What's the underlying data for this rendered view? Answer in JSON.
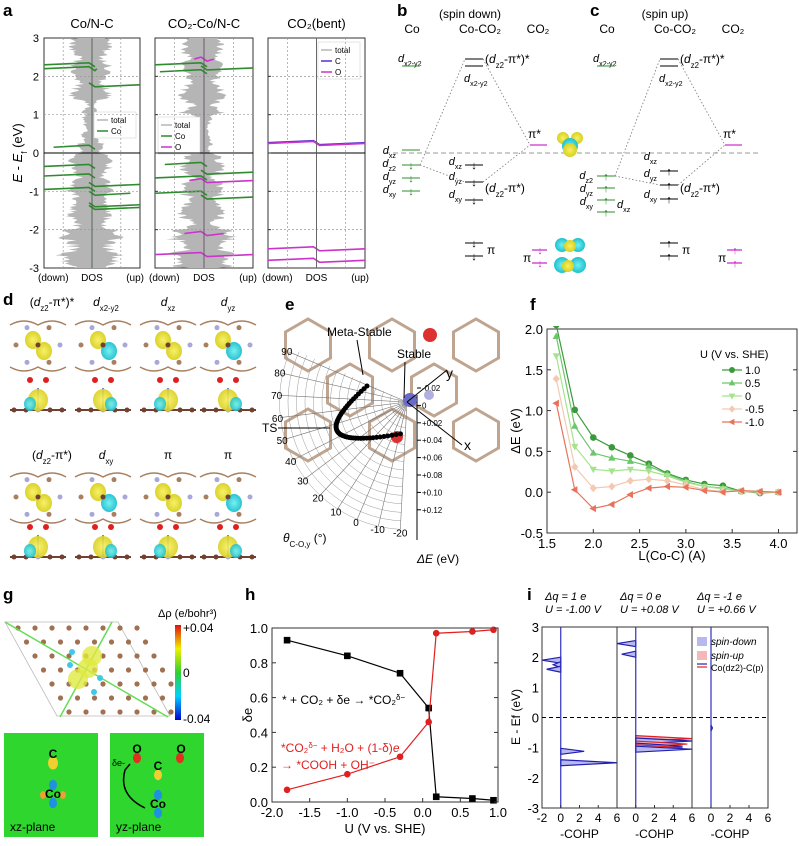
{
  "panel_labels": {
    "a": "a",
    "b": "b",
    "c": "c",
    "d": "d",
    "e": "e",
    "f": "f",
    "g": "g",
    "h": "h",
    "i": "i"
  },
  "a": {
    "ylabel_pre": "E",
    "ylabel_mid": " - ",
    "ylabel_E": "E",
    "ylabel_sub": "f",
    "ylabel_post": " (eV)"
  },
  "b": {
    "header": "(spin down)",
    "columns": [
      "Co",
      "Co-CO₂",
      "CO₂"
    ],
    "co": {
      "dx2y2": {
        "d": "d",
        "sub": "x2-y2"
      },
      "dxz": {
        "d": "d",
        "sub": "xz"
      },
      "dz2": {
        "d": "d",
        "sub": "z2"
      },
      "dyz": {
        "d": "d",
        "sub": "yz"
      },
      "dxy": {
        "d": "d",
        "sub": "xy"
      }
    },
    "complex": {
      "anti": {
        "pre": "(",
        "d": "d",
        "sub": "z2",
        "post": "-π*)*"
      },
      "dx2y2": {
        "d": "d",
        "sub": "x2-y2"
      },
      "dxz": {
        "d": "d",
        "sub": "xz"
      },
      "dyz": {
        "d": "d",
        "sub": "yz"
      },
      "bond": {
        "pre": "(",
        "d": "d",
        "sub": "z2",
        "post": "-π*)"
      },
      "dxy": {
        "d": "d",
        "sub": "xy"
      },
      "pi": "π"
    },
    "co2": {
      "pistar": "π*",
      "pi": "π"
    }
  },
  "c": {
    "header": "(spin up)",
    "columns": [
      "Co",
      "Co-CO₂",
      "CO₂"
    ],
    "co": {
      "dx2y2": {
        "d": "d",
        "sub": "x2-y2"
      },
      "dz2": {
        "d": "d",
        "sub": "z2"
      },
      "dyz": {
        "d": "d",
        "sub": "yz"
      },
      "dxy": {
        "d": "d",
        "sub": "xy"
      },
      "dxz": {
        "d": "d",
        "sub": "xz"
      }
    },
    "complex": {
      "anti": {
        "pre": "(",
        "d": "d",
        "sub": "z2",
        "post": "-π*)*"
      },
      "dx2y2": {
        "d": "d",
        "sub": "x2-y2"
      },
      "dxz": {
        "d": "d",
        "sub": "xz"
      },
      "dyz": {
        "d": "d",
        "sub": "yz"
      },
      "bond": {
        "pre": "(",
        "d": "d",
        "sub": "z2",
        "post": "-π*)"
      },
      "dxy": {
        "d": "d",
        "sub": "xy"
      },
      "pi": "π"
    },
    "co2": {
      "pistar": "π*",
      "pi": "π"
    }
  },
  "d": {
    "titles": [
      {
        "pre": "(",
        "d": "d",
        "sub": "z2",
        "post": "-π*)*"
      },
      {
        "pre": "",
        "d": "d",
        "sub": "x2-y2",
        "post": ""
      },
      {
        "pre": "",
        "d": "d",
        "sub": "xz",
        "post": ""
      },
      {
        "pre": "",
        "d": "d",
        "sub": "yz",
        "post": ""
      },
      {
        "pre": "(",
        "d": "d",
        "sub": "z2",
        "post": "-π*)"
      },
      {
        "pre": "",
        "d": "d",
        "sub": "xy",
        "post": ""
      },
      {
        "pre": "π",
        "d": "",
        "sub": "",
        "post": ""
      },
      {
        "pre": "π",
        "d": "",
        "sub": "",
        "post": ""
      }
    ]
  },
  "e": {
    "meta_stable": "Meta-Stable",
    "stable": "Stable",
    "ts": "TS",
    "x_axis": "x",
    "y_axis": "y",
    "theta_label": "θ",
    "theta_sub": "C-O,y",
    "theta_unit": " (°)",
    "theta_ticks": [
      "90",
      "80",
      "70",
      "60",
      "50",
      "40",
      "30",
      "20",
      "10",
      "0",
      "-10",
      "-20"
    ],
    "de_ticks": [
      "-0.02",
      "0",
      "+0.02",
      "+0.04",
      "+0.06",
      "+0.08",
      "+0.10",
      "+0.12"
    ],
    "de_label": "ΔE",
    "de_unit": " (eV)"
  },
  "g": {
    "cbar_title": "Δρ (e/bohr³)",
    "cbar_max": "+0.04",
    "cbar_mid": "0",
    "cbar_min": "-0.04",
    "xz": {
      "label": "xz-plane",
      "c": "C",
      "co": "Co"
    },
    "yz": {
      "label": "yz-plane",
      "o1": "O",
      "o2": "O",
      "c": "C",
      "co": "Co",
      "de": "δe-"
    }
  },
  "h_text": {
    "eq1_main": "* + CO₂ + δe → *CO₂",
    "eq1_sup": "δ−",
    "eq2a_main": "*CO₂",
    "eq2a_sup": "δ−",
    "eq2a_rest": " + H₂O + (1-δ)",
    "eq2a_e": "e",
    "eq2b": "→ *COOH + OH⁻"
  },
  "i_text": {
    "headers": [
      {
        "dq": "Δq = 1 e",
        "u": "U = -1.00 V"
      },
      {
        "dq": "Δq = 0 e",
        "u": "U = +0.08 V"
      },
      {
        "dq": "Δq = -1 e",
        "u": "U = +0.66 V"
      }
    ],
    "legend": [
      "spin-down",
      "spin-up",
      "Co(dz2)-C(p)"
    ],
    "ylabel": "E - Ef (eV)"
  },
  "colors": {
    "co": "#2e8b2e",
    "o": "#cc33cc",
    "c": "#5533cc",
    "total": "#b5b5b5",
    "red": "#e02020",
    "green": "#3a9a3a"
  },
  "chart_data": [
    {
      "type": "area",
      "panel": "a",
      "title": "Co/N-C",
      "xlabels": [
        "(down)",
        "DOS",
        "(up)"
      ],
      "ylim": [
        -3,
        3
      ],
      "yticks": [
        "3",
        "2",
        "1",
        "0",
        "-1",
        "-2",
        "-3"
      ],
      "legend": [
        "total",
        "Co"
      ],
      "peaks": [
        {
          "s": "Co",
          "E": 2.3,
          "down": 1.0,
          "up": 0
        },
        {
          "s": "Co",
          "E": 2.2,
          "down": 1.0,
          "up": 0.1
        },
        {
          "s": "Co",
          "E": 1.78,
          "down": 0,
          "up": 1.0
        },
        {
          "s": "Co",
          "E": 0.15,
          "down": 0.8,
          "up": 0
        },
        {
          "s": "Co",
          "E": -0.35,
          "down": 1.0,
          "up": 0
        },
        {
          "s": "Co",
          "E": -0.6,
          "down": 1.0,
          "up": 0
        },
        {
          "s": "Co",
          "E": -0.82,
          "down": 0,
          "up": 1.0
        },
        {
          "s": "Co",
          "E": -0.95,
          "down": 1.0,
          "up": 0
        },
        {
          "s": "Co",
          "E": -1.05,
          "down": 0,
          "up": 0.8
        },
        {
          "s": "Co",
          "E": -1.35,
          "down": 0,
          "up": 1.0
        },
        {
          "s": "Co",
          "E": -1.42,
          "down": 0,
          "up": 1.0
        }
      ]
    },
    {
      "type": "area",
      "panel": "a",
      "title": "CO₂-Co/N-C",
      "xlabels": [
        "(down)",
        "DOS",
        "(up)"
      ],
      "ylim": [
        -3,
        3
      ],
      "yticks": [
        "3",
        "2",
        "1",
        "0",
        "-1",
        "-2",
        "-3"
      ],
      "legend": [
        "total",
        "Co",
        "O"
      ],
      "peaks": [
        {
          "s": "Co",
          "E": 2.3,
          "down": 1.0,
          "up": 0
        },
        {
          "s": "Co",
          "E": 2.22,
          "down": 0,
          "up": 1.0
        },
        {
          "s": "Co",
          "E": 2.12,
          "down": 0.9,
          "up": 0
        },
        {
          "s": "O",
          "E": 2.45,
          "down": 0.2,
          "up": 0.2
        },
        {
          "s": "Co",
          "E": -0.3,
          "down": 0.8,
          "up": 0
        },
        {
          "s": "Co",
          "E": -0.5,
          "down": 0,
          "up": 1.0
        },
        {
          "s": "Co",
          "E": -0.65,
          "down": 1.0,
          "up": 0
        },
        {
          "s": "O",
          "E": -0.72,
          "down": 0.3,
          "up": 1.0
        },
        {
          "s": "Co",
          "E": -1.05,
          "down": 1.0,
          "up": 0
        },
        {
          "s": "Co",
          "E": -1.15,
          "down": 0,
          "up": 1.0
        },
        {
          "s": "O",
          "E": -2.1,
          "down": 0.4,
          "up": 0.4
        },
        {
          "s": "O",
          "E": -2.65,
          "down": 1.0,
          "up": 1.0
        }
      ]
    },
    {
      "type": "area",
      "panel": "a",
      "title": "CO₂(bent)",
      "xlabels": [
        "(down)",
        "DOS",
        "(up)"
      ],
      "ylim": [
        -3,
        3
      ],
      "yticks": [
        "3",
        "2",
        "1",
        "0",
        "-1",
        "-2",
        "-3"
      ],
      "legend": [
        "total",
        "C",
        "O"
      ],
      "peaks": [
        {
          "s": "C",
          "E": 0.27,
          "down": 1.0,
          "up": 1.0
        },
        {
          "s": "O",
          "E": 0.25,
          "down": 1.0,
          "up": 1.0
        },
        {
          "s": "O",
          "E": -2.5,
          "down": 1.0,
          "up": 1.0
        },
        {
          "s": "O",
          "E": -2.8,
          "down": 1.0,
          "up": 1.0
        }
      ]
    },
    {
      "type": "line",
      "panel": "f",
      "xlabel": "L(Co-C) (A)",
      "ylabel": "ΔE (eV)",
      "xlim": [
        1.5,
        4.2
      ],
      "ylim": [
        -0.5,
        2.0
      ],
      "xticks": [
        "1.5",
        "2.0",
        "2.5",
        "3.0",
        "3.5",
        "4.0"
      ],
      "yticks": [
        "-0.5",
        "0.0",
        "0.5",
        "1.0",
        "1.5",
        "2.0"
      ],
      "legend_title": "U (V vs. SHE)",
      "x": [
        1.6,
        1.8,
        2.0,
        2.2,
        2.4,
        2.6,
        2.8,
        3.0,
        3.2,
        3.4,
        3.6,
        3.8,
        4.0
      ],
      "series": [
        {
          "name": "1.0",
          "color": "#3a9a3a",
          "marker": "circle",
          "values": [
            2.05,
            1.01,
            0.67,
            0.55,
            0.45,
            0.35,
            0.23,
            0.15,
            0.1,
            0.08,
            0.01,
            -0.01,
            0.0
          ]
        },
        {
          "name": "0.5",
          "color": "#6cc66c",
          "marker": "triangle-up",
          "values": [
            1.91,
            0.81,
            0.48,
            0.42,
            0.38,
            0.32,
            0.22,
            0.13,
            0.07,
            0.05,
            0.01,
            0.0,
            0.0
          ]
        },
        {
          "name": "0",
          "color": "#a6e38e",
          "marker": "triangle-down",
          "values": [
            1.67,
            0.56,
            0.28,
            0.26,
            0.28,
            0.26,
            0.2,
            0.12,
            0.07,
            0.04,
            0.01,
            0.0,
            0.0
          ]
        },
        {
          "name": "-0.5",
          "color": "#f4c9b2",
          "marker": "diamond",
          "values": [
            1.39,
            0.31,
            0.05,
            0.07,
            0.14,
            0.16,
            0.14,
            0.09,
            0.03,
            0.01,
            0.01,
            0.0,
            0.0
          ]
        },
        {
          "name": "-1.0",
          "color": "#e8735a",
          "marker": "triangle-left",
          "values": [
            1.09,
            0.03,
            -0.2,
            -0.15,
            -0.03,
            0.05,
            0.07,
            0.06,
            0.02,
            0.0,
            0.02,
            0.01,
            0.0
          ]
        }
      ]
    },
    {
      "type": "line",
      "panel": "h",
      "xlabel": "U (V vs. SHE)",
      "ylabel": "δe",
      "xlim": [
        -2.0,
        1.0
      ],
      "ylim": [
        0.0,
        1.0
      ],
      "xticks": [
        "-2.0",
        "-1.5",
        "-1.0",
        "-0.5",
        "0.0",
        "0.5",
        "1.0"
      ],
      "yticks": [
        "0.0",
        "0.2",
        "0.4",
        "0.6",
        "0.8",
        "1.0"
      ],
      "x": [
        -1.8,
        -1.0,
        -0.3,
        0.08,
        0.18,
        0.66,
        0.94
      ],
      "series": [
        {
          "name": "* + CO₂ + δe → *CO₂δ−",
          "color": "#000000",
          "marker": "square",
          "values": [
            0.93,
            0.84,
            0.74,
            0.54,
            0.03,
            0.02,
            0.01
          ]
        },
        {
          "name": "*CO₂δ− + H₂O + (1-δ)e → *COOH + OH⁻",
          "color": "#e02020",
          "marker": "circle",
          "values": [
            0.07,
            0.16,
            0.26,
            0.46,
            0.97,
            0.98,
            0.99
          ]
        }
      ]
    },
    {
      "type": "line",
      "panel": "i",
      "xlabel": "-COHP",
      "xlim": [
        -2,
        6
      ],
      "ylim": [
        -3,
        3
      ],
      "xticks": [
        "-2",
        "0",
        "2",
        "4",
        "6"
      ],
      "yticks": [
        "3",
        "2",
        "1",
        "0",
        "-1",
        "-2",
        "-3"
      ],
      "peaks": [
        {
          "spin": "down",
          "E": 1.9,
          "v": -2.0
        },
        {
          "spin": "down",
          "E": 1.75,
          "v": -0.8
        },
        {
          "spin": "down",
          "E": 1.6,
          "v": -1.5
        },
        {
          "spin": "down",
          "E": -1.12,
          "v": 2.5
        },
        {
          "spin": "down",
          "E": -1.5,
          "v": 6.0
        }
      ]
    },
    {
      "type": "line",
      "panel": "i",
      "xlabel": "-COHP",
      "xlim": [
        -2,
        6
      ],
      "ylim": [
        -3,
        3
      ],
      "xticks": [
        "0",
        "2",
        "4",
        "6"
      ],
      "peaks": [
        {
          "spin": "down",
          "E": 2.45,
          "v": -2.0
        },
        {
          "spin": "down",
          "E": 2.1,
          "v": -1.5
        },
        {
          "spin": "up",
          "E": -0.7,
          "v": 6.0
        },
        {
          "spin": "down",
          "E": -0.78,
          "v": 6.0
        },
        {
          "spin": "up",
          "E": -0.88,
          "v": 5.5
        },
        {
          "spin": "down",
          "E": -0.95,
          "v": 5.0
        },
        {
          "spin": "up",
          "E": -1.0,
          "v": 5.0
        },
        {
          "spin": "down",
          "E": -1.05,
          "v": 6.0
        }
      ]
    },
    {
      "type": "line",
      "panel": "i",
      "xlabel": "-COHP",
      "xlim": [
        -2,
        6
      ],
      "ylim": [
        -3,
        3
      ],
      "xticks": [
        "0",
        "2",
        "4",
        "6"
      ],
      "peaks": [
        {
          "spin": "down",
          "E": -0.35,
          "v": 0.15
        }
      ]
    }
  ]
}
